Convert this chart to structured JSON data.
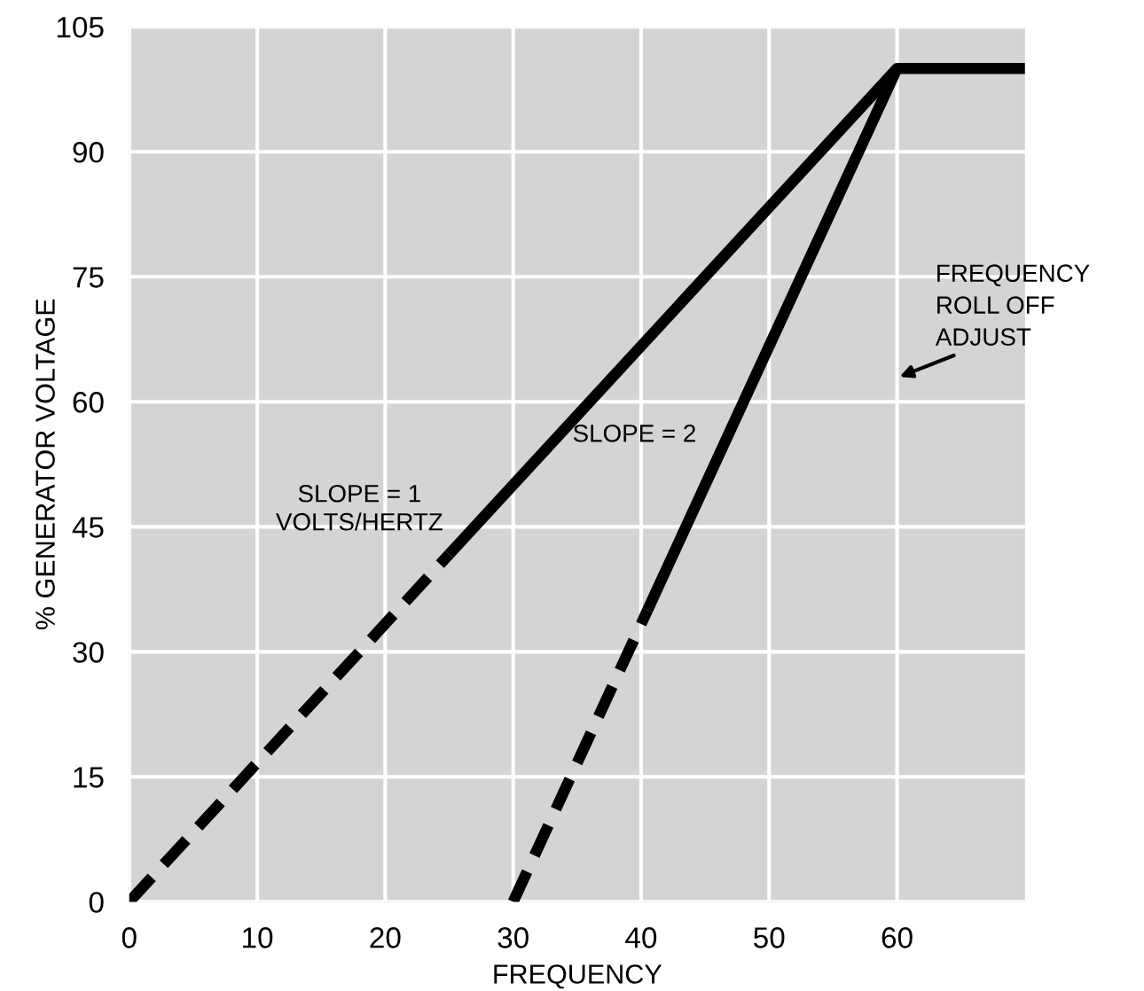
{
  "chart_data": {
    "type": "line",
    "xlabel": "FREQUENCY",
    "ylabel": "% GENERATOR VOLTAGE",
    "xlim": [
      0,
      70
    ],
    "ylim": [
      0,
      105
    ],
    "xticks": [
      0,
      10,
      20,
      30,
      40,
      50,
      60
    ],
    "yticks": [
      0,
      15,
      30,
      45,
      60,
      75,
      90,
      105
    ],
    "grid": true,
    "series": [
      {
        "x": [
          0,
          25
        ],
        "values": [
          0,
          41.7
        ],
        "color": "#000000",
        "line_style": "dashed"
      },
      {
        "x": [
          25,
          60,
          70
        ],
        "values": [
          41.7,
          100,
          100
        ],
        "color": "#000000",
        "line_style": "solid"
      },
      {
        "x": [
          30,
          40.5
        ],
        "values": [
          0,
          35
        ],
        "color": "#000000",
        "line_style": "dashed"
      },
      {
        "x": [
          40.5,
          60
        ],
        "values": [
          35,
          100
        ],
        "color": "#000000",
        "line_style": "solid"
      }
    ],
    "annotations": [
      "SLOPE = 1\nVOLTS/HERTZ",
      "SLOPE = 2",
      "FREQUENCY\nROLL OFF\nADJUST"
    ]
  }
}
